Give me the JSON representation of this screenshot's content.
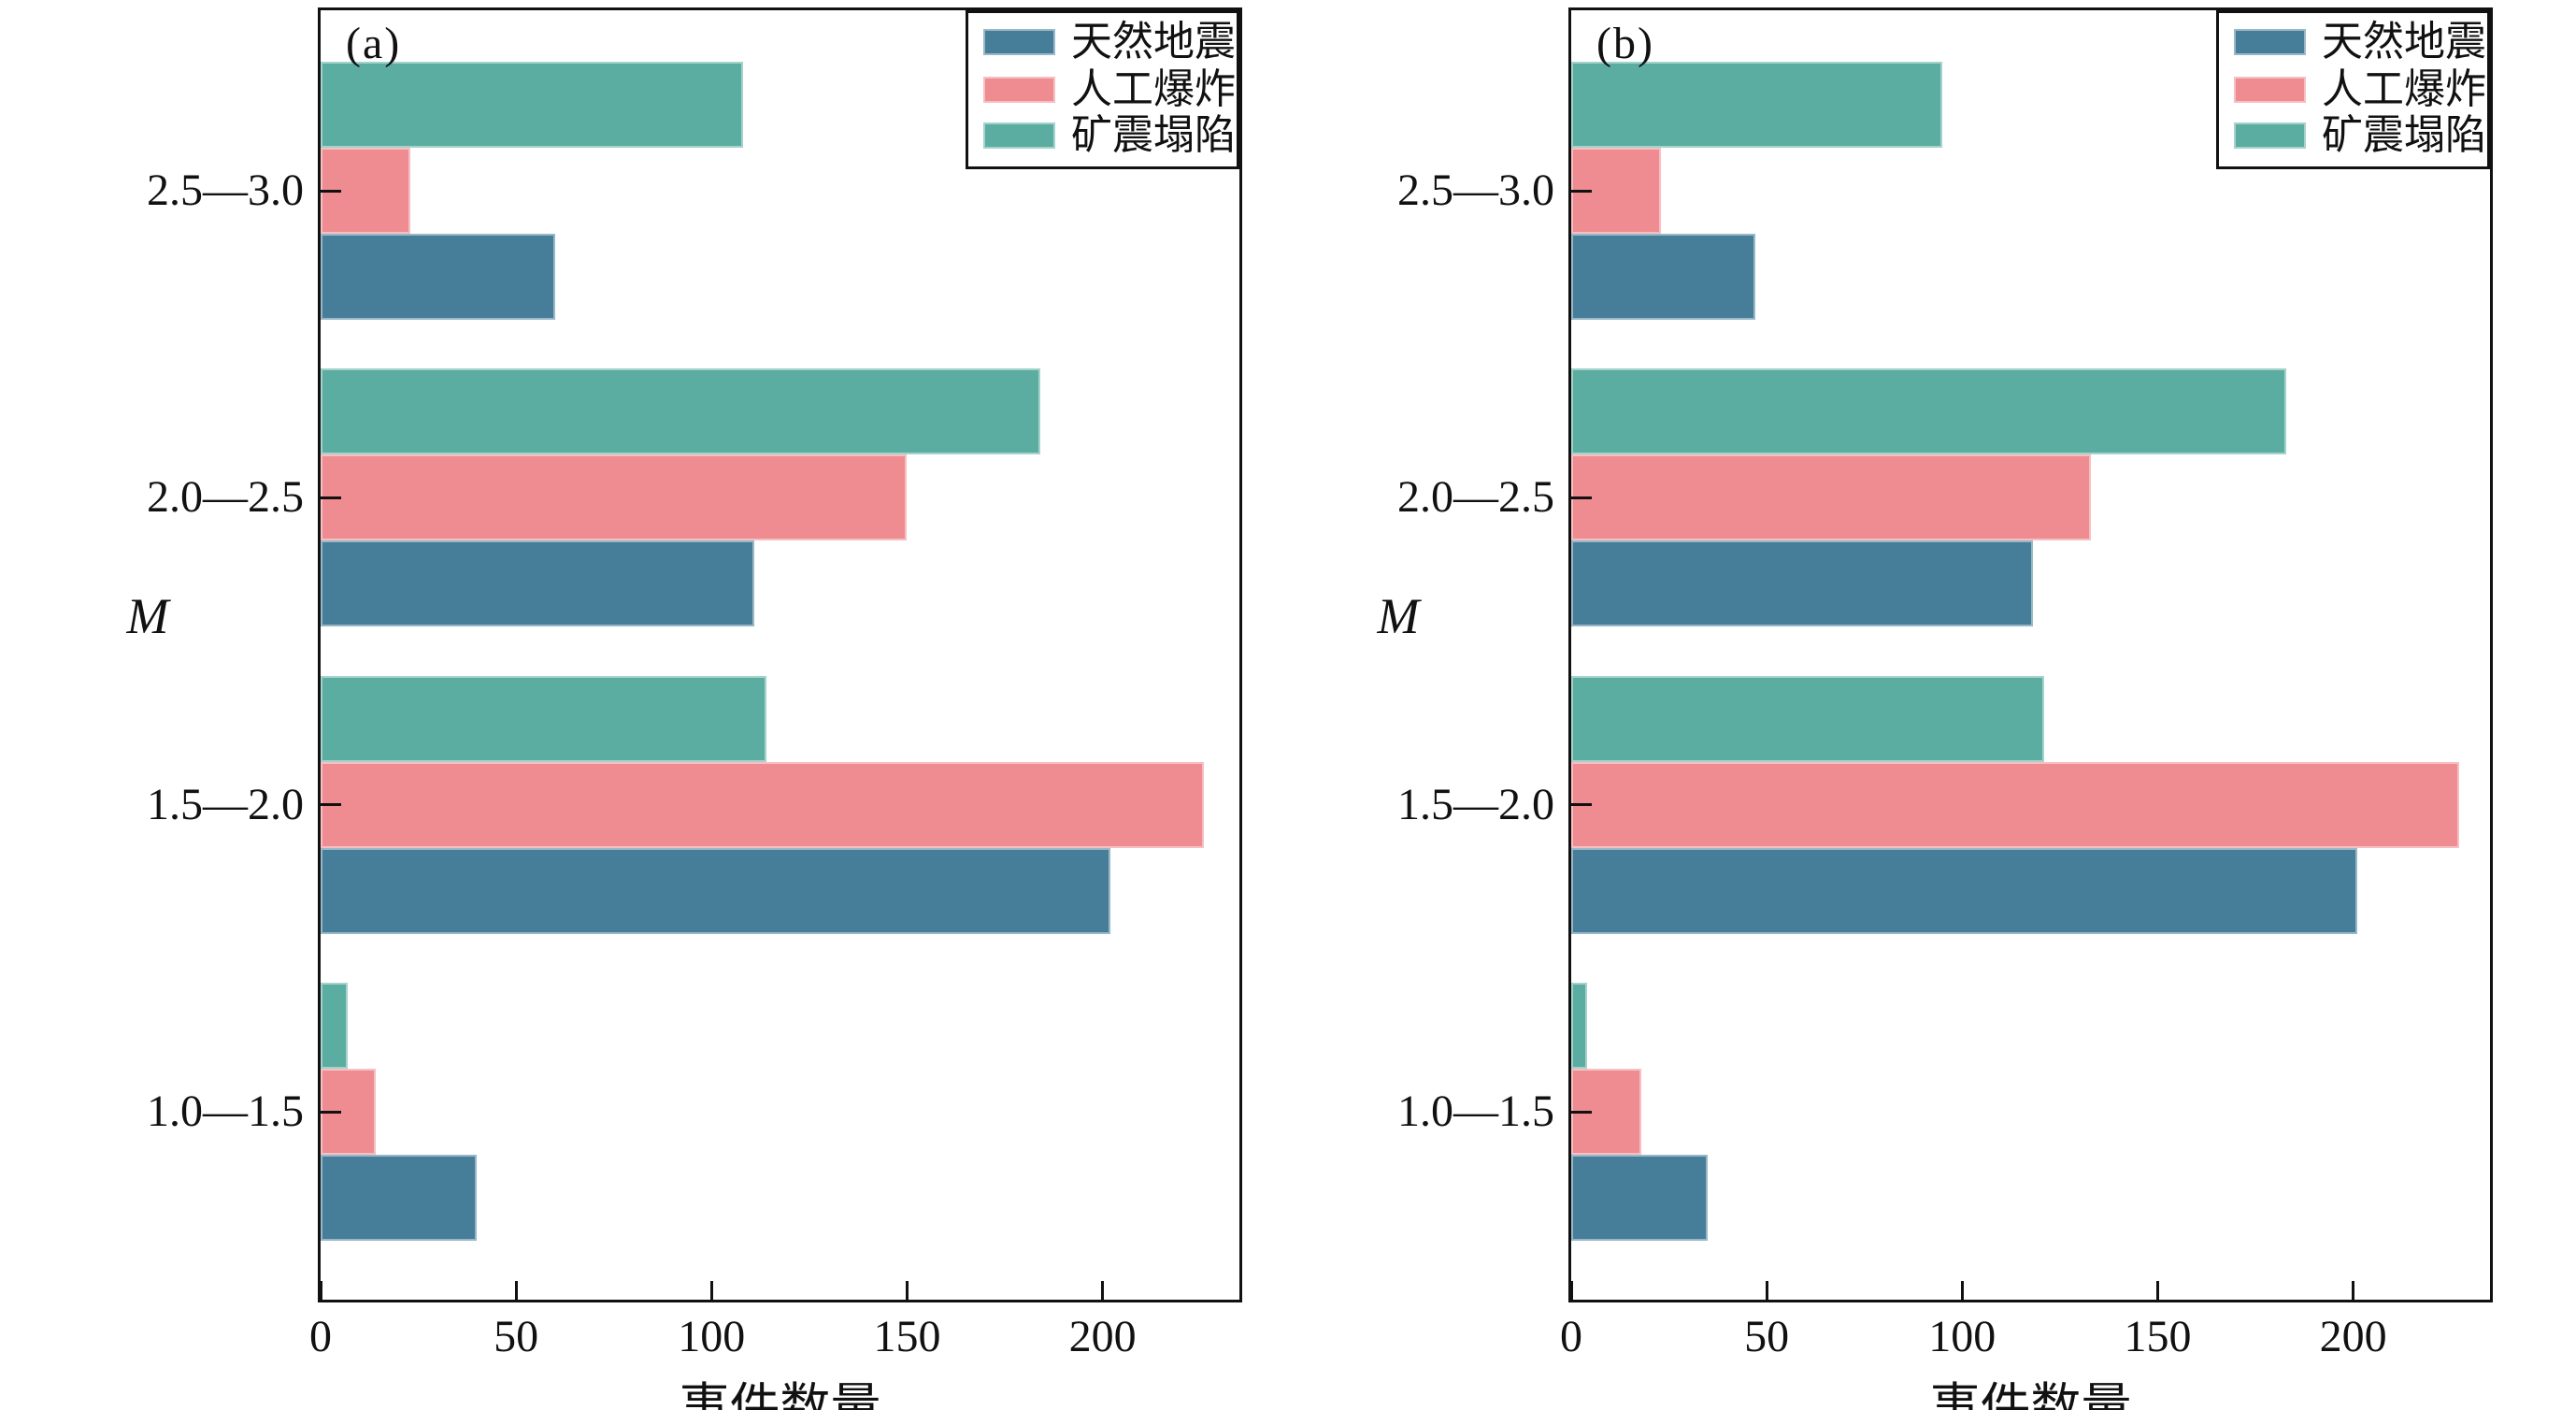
{
  "figure": {
    "x_axis_label": "事件数量",
    "y_axis_label": "M",
    "legend_entries": [
      "天然地震",
      "人工爆炸",
      "矿震塌陷"
    ],
    "colors": {
      "natural_earthquake": "#467E9A",
      "artificial_explosion": "#EE8C92",
      "mine_collapse": "#5CADA1",
      "axis_line": "#111111"
    }
  },
  "chart_data": [
    {
      "type": "bar",
      "orientation": "horizontal",
      "panel_label": "(a)",
      "title": "",
      "xlabel": "事件数量",
      "ylabel": "M",
      "xlim": [
        0,
        235
      ],
      "x_ticks": [
        0,
        50,
        100,
        150,
        200
      ],
      "grid": false,
      "legend_position": "top-right",
      "categories_bottom_to_top": [
        "1.0—1.5",
        "1.5—2.0",
        "2.0—2.5",
        "2.5—3.0"
      ],
      "series": [
        {
          "name": "天然地震",
          "color": "#467E9A",
          "values": [
            40,
            202,
            111,
            60
          ]
        },
        {
          "name": "人工爆炸",
          "color": "#EE8C92",
          "values": [
            14,
            226,
            150,
            23
          ]
        },
        {
          "name": "矿震塌陷",
          "color": "#5CADA1",
          "values": [
            7,
            114,
            184,
            108
          ]
        }
      ],
      "bar_order_top_to_bottom_within_group": [
        "矿震塌陷",
        "人工爆炸",
        "天然地震"
      ]
    },
    {
      "type": "bar",
      "orientation": "horizontal",
      "panel_label": "(b)",
      "title": "",
      "xlabel": "事件数量",
      "ylabel": "M",
      "xlim": [
        0,
        235
      ],
      "x_ticks": [
        0,
        50,
        100,
        150,
        200
      ],
      "grid": false,
      "legend_position": "top-right",
      "categories_bottom_to_top": [
        "1.0—1.5",
        "1.5—2.0",
        "2.0—2.5",
        "2.5—3.0"
      ],
      "series": [
        {
          "name": "天然地震",
          "color": "#467E9A",
          "values": [
            35,
            201,
            118,
            47
          ]
        },
        {
          "name": "人工爆炸",
          "color": "#EE8C92",
          "values": [
            18,
            227,
            133,
            23
          ]
        },
        {
          "name": "矿震塌陷",
          "color": "#5CADA1",
          "values": [
            4,
            121,
            183,
            95
          ]
        }
      ],
      "bar_order_top_to_bottom_within_group": [
        "矿震塌陷",
        "人工爆炸",
        "天然地震"
      ]
    }
  ]
}
